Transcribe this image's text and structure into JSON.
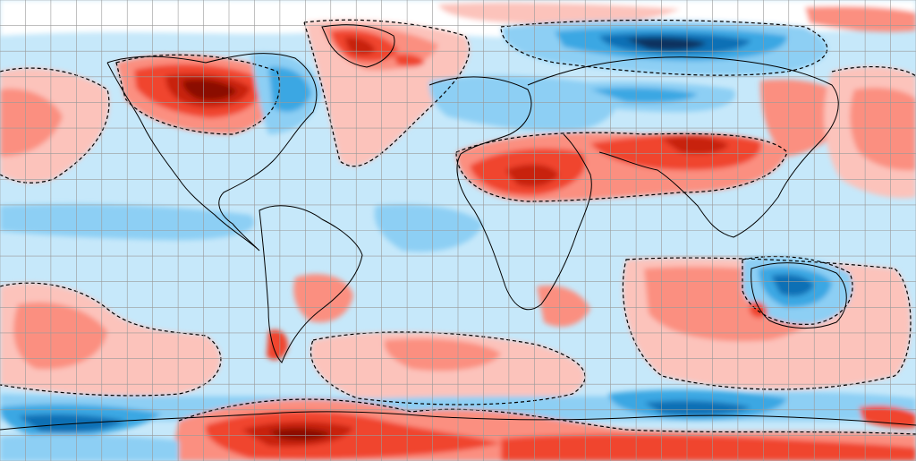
{
  "map": {
    "projection": "equirectangular",
    "grid_spacing_deg": 10,
    "palette": {
      "strong_warm": "#8b0c05",
      "warm_3": "#c8210e",
      "warm_2": "#f0452d",
      "warm_1": "#fb8f80",
      "warm_0": "#fcc3bb",
      "neutral": "#ffffff",
      "cool_0": "#c8e9fb",
      "cool_1": "#8dcff4",
      "cool_2": "#3aa7e3",
      "cool_3": "#0f6fb5",
      "strong_cool": "#08335e",
      "background_ocean": "#c6e8fa",
      "coastline": "#000000",
      "gridline": "#9a9a9a",
      "contour_dash": "#000000"
    },
    "regions": [
      {
        "name": "northwest-canada-warm-anomaly",
        "level": 4
      },
      {
        "name": "greenland-warm-anomaly",
        "level": 3
      },
      {
        "name": "north-africa-warm-anomaly",
        "level": 3
      },
      {
        "name": "middle-east-asia-warm-anomaly",
        "level": 3
      },
      {
        "name": "russia-cold-anomaly",
        "level": -4
      },
      {
        "name": "australia-cold-anomaly",
        "level": -3
      },
      {
        "name": "south-pacific-warm-anomaly",
        "level": 2
      },
      {
        "name": "south-indian-warm-anomaly",
        "level": 2
      },
      {
        "name": "antarctica-west-warm-anomaly",
        "level": 4
      },
      {
        "name": "southern-ocean-cold-anomaly",
        "level": -3
      }
    ]
  }
}
